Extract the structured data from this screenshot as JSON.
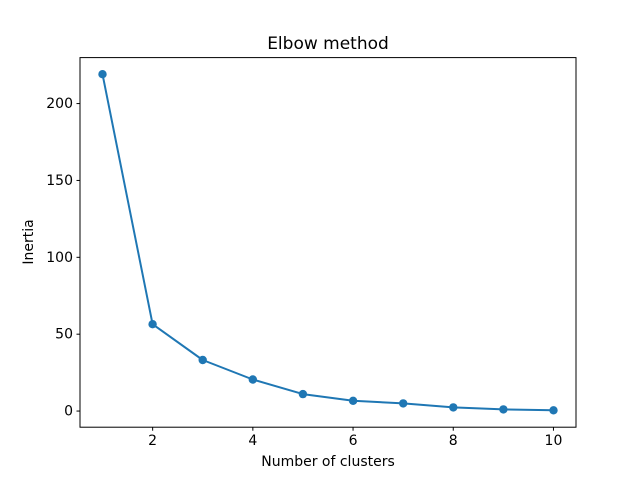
{
  "chart_data": {
    "type": "line",
    "title": "Elbow method",
    "xlabel": "Number of clusters",
    "ylabel": "Inertia",
    "x": [
      1,
      2,
      3,
      4,
      5,
      6,
      7,
      8,
      9,
      10
    ],
    "y": [
      219.1,
      56.5,
      33.2,
      20.5,
      11.0,
      6.7,
      5.0,
      2.4,
      1.1,
      0.5
    ],
    "xticks": [
      2,
      4,
      6,
      8,
      10
    ],
    "yticks": [
      0,
      50,
      100,
      150,
      200
    ],
    "xlim": [
      0.55,
      10.45
    ],
    "ylim": [
      -10.5,
      229.9
    ],
    "line_color": "#1f77b4",
    "marker": "o",
    "grid": false,
    "legend": "none",
    "background": "#ffffff"
  }
}
